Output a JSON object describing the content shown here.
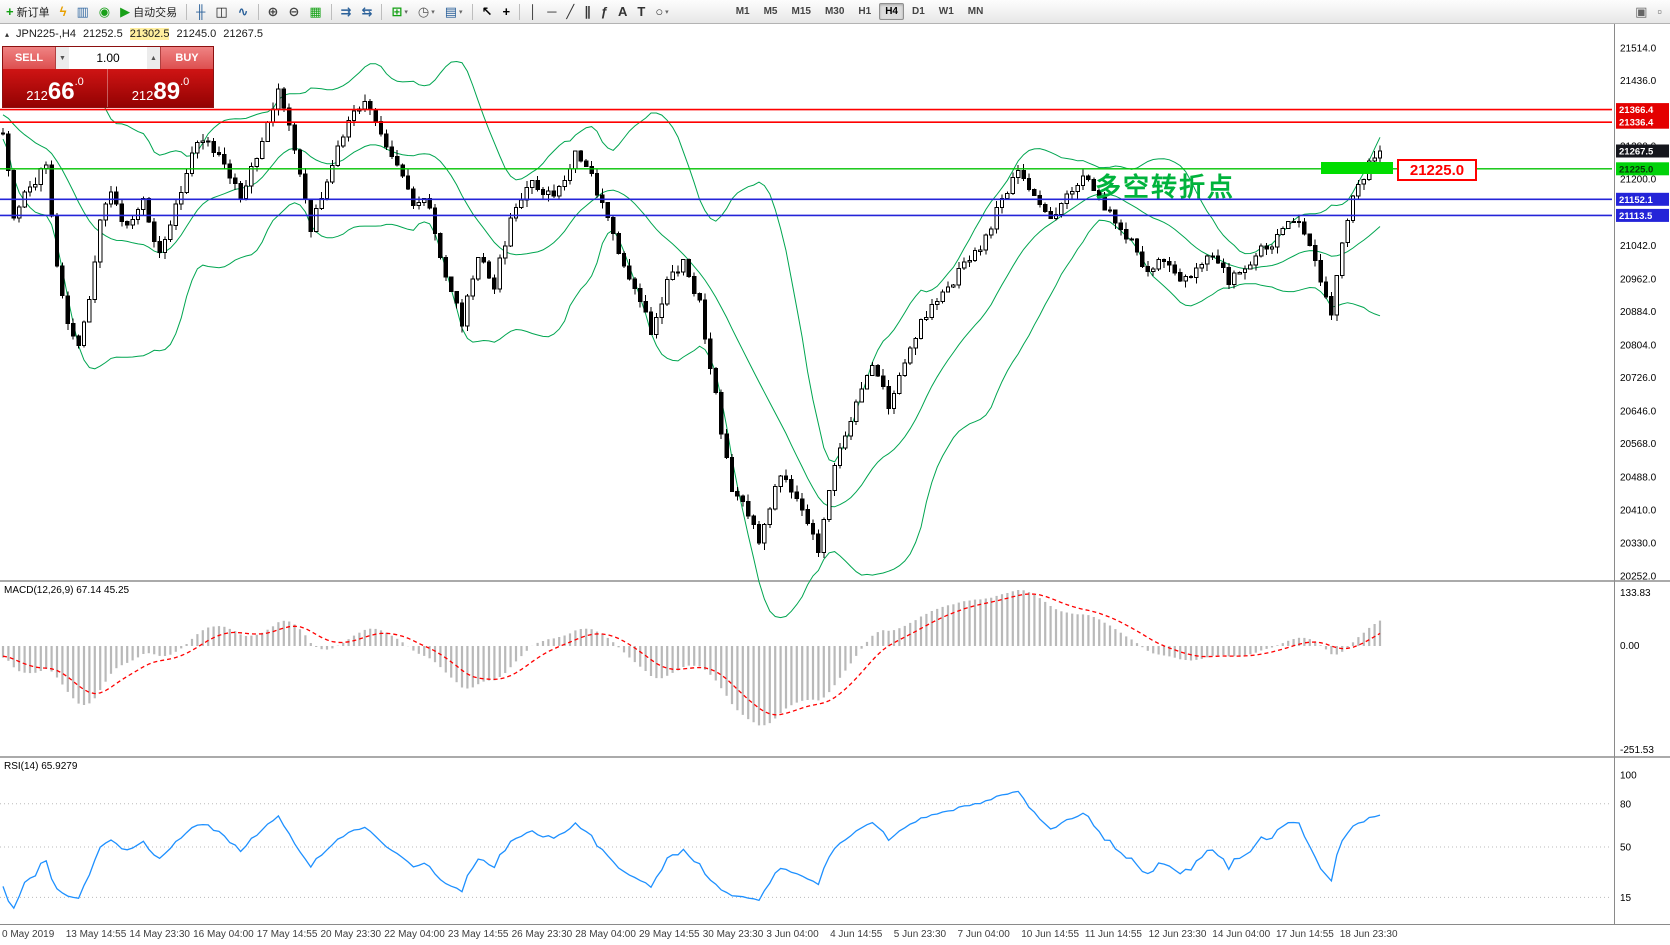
{
  "icons": {
    "up_arrow": "▲",
    "down_arrow": "▼",
    "collapse": "▴",
    "dropdown": "▾"
  },
  "toolbar": {
    "items": [
      {
        "name": "new-order",
        "glyph": "+",
        "color": "#13a113",
        "label": "新订单"
      },
      {
        "name": "lightning",
        "glyph": "ϟ",
        "color": "#e8a000"
      },
      {
        "name": "market-watch",
        "glyph": "▥",
        "color": "#3a6ea5"
      },
      {
        "name": "navigator",
        "glyph": "◉",
        "color": "#18a018"
      },
      {
        "name": "autotrade",
        "glyph": "▶",
        "color": "#18a018",
        "label": "自动交易"
      },
      {
        "sep": true
      },
      {
        "name": "bar-chart",
        "glyph": "╫",
        "color": "#2a6099"
      },
      {
        "name": "candlestick-chart",
        "glyph": "◫",
        "color": "#222222"
      },
      {
        "name": "line-chart",
        "glyph": "∿",
        "color": "#2a6099"
      },
      {
        "sep": true
      },
      {
        "name": "zoom-in",
        "glyph": "⊕",
        "color": "#444444"
      },
      {
        "name": "zoom-out",
        "glyph": "⊖",
        "color": "#444444"
      },
      {
        "name": "tile-windows",
        "glyph": "▦",
        "color": "#13a113"
      },
      {
        "sep": true
      },
      {
        "name": "auto-scroll",
        "glyph": "⇉",
        "color": "#2a6099"
      },
      {
        "name": "chart-shift",
        "glyph": "⇆",
        "color": "#2a6099"
      },
      {
        "sep": true
      },
      {
        "name": "indicators",
        "glyph": "⊞",
        "color": "#13a113",
        "dd": true
      },
      {
        "name": "periods",
        "glyph": "◷",
        "color": "#555555",
        "dd": true
      },
      {
        "name": "templates",
        "glyph": "▤",
        "color": "#2a6099",
        "dd": true
      },
      {
        "sep": true
      },
      {
        "name": "cursor",
        "glyph": "↖",
        "color": "#000000"
      },
      {
        "name": "crosshair",
        "glyph": "+",
        "color": "#000000"
      },
      {
        "sep": true
      },
      {
        "name": "vertical-line",
        "glyph": "│",
        "color": "#333333"
      },
      {
        "name": "horizontal-line",
        "glyph": "─",
        "color": "#333333"
      },
      {
        "name": "trendline",
        "glyph": "╱",
        "color": "#333333"
      },
      {
        "name": "equidistant-channel",
        "glyph": "∥",
        "color": "#333333"
      },
      {
        "name": "fibonacci",
        "glyph": "ƒ",
        "color": "#333333"
      },
      {
        "name": "text",
        "glyph": "A",
        "color": "#333333"
      },
      {
        "name": "text-label",
        "glyph": "T",
        "color": "#333333"
      },
      {
        "name": "shapes",
        "glyph": "○",
        "color": "#333333",
        "dd": true
      }
    ],
    "right_items": [
      {
        "name": "window",
        "glyph": "▣",
        "color": "#666666"
      },
      {
        "name": "docking",
        "glyph": "▫",
        "color": "#666666"
      }
    ],
    "timeframes": [
      {
        "label": "M1"
      },
      {
        "label": "M5"
      },
      {
        "label": "M15"
      },
      {
        "label": "M30"
      },
      {
        "label": "H1"
      },
      {
        "label": "H4",
        "active": true
      },
      {
        "label": "D1"
      },
      {
        "label": "W1"
      },
      {
        "label": "MN"
      }
    ]
  },
  "symbol_header": {
    "symbol": "JPN225-,H4",
    "o": "21252.5",
    "h": "21302.5",
    "l": "21245.0",
    "c": "21267.5"
  },
  "trade_panel": {
    "sell_label": "SELL",
    "buy_label": "BUY",
    "volume": "1.00",
    "sell_price": "21266.0",
    "buy_price": "21289.0"
  },
  "chart_data": {
    "type": "candlestick",
    "symbol": "JPN225-",
    "timeframe": "H4",
    "current_price": 21267.5,
    "y_axis_ticks": [
      "21514.0",
      "21436.0",
      "21358.0",
      "21280.0",
      "21200.0",
      "21120.0",
      "21042.0",
      "20962.0",
      "20884.0",
      "20804.0",
      "20726.0",
      "20646.0",
      "20568.0",
      "20488.0",
      "20410.0",
      "20330.0",
      "20252.0"
    ],
    "price_tags": [
      {
        "value": "21366.4",
        "price": 21366.4,
        "bg": "#e40000",
        "fg": "#ffffff",
        "line": "#ff0000",
        "lw": 1.6
      },
      {
        "value": "21336.4",
        "price": 21336.4,
        "bg": "#e40000",
        "fg": "#ffffff",
        "line": "#ff0000",
        "lw": 1.6
      },
      {
        "value": "21267.5",
        "price": 21267.5,
        "bg": "#15161d",
        "fg": "#ffffff",
        "line": null,
        "lw": 0
      },
      {
        "value": "21225.0",
        "price": 21225.0,
        "bg": "#00d20a",
        "fg": "#083308",
        "line": "#00c300",
        "lw": 1.4
      },
      {
        "value": "21152.1",
        "price": 21152.1,
        "bg": "#2424d8",
        "fg": "#ffffff",
        "line": "#2424d8",
        "lw": 1.6
      },
      {
        "value": "21113.5",
        "price": 21113.5,
        "bg": "#2424d8",
        "fg": "#ffffff",
        "line": "#2424d8",
        "lw": 1.6
      }
    ],
    "marker": {
      "label": "21225.0",
      "rect_color": "#00dd00"
    },
    "annotation": {
      "text": "多空转折点",
      "color": "#00b33c"
    },
    "bollinger": {
      "period": 20,
      "deviation": 2,
      "color": "#00a550"
    },
    "candle_colors": {
      "bull": "#ffffff",
      "bear": "#000000",
      "outline": "#000000"
    },
    "macd": {
      "label": "MACD(12,26,9) 67.14 45.25",
      "axis_labels": [
        "133.83",
        "0.00",
        "-251.53"
      ],
      "hist_color": "#b9b9b9",
      "signal_color": "#ff0000"
    },
    "rsi": {
      "label": "RSI(14) 65.9279",
      "axis_labels": [
        "100",
        "80",
        "50",
        "15"
      ],
      "levels": [
        80,
        50,
        15
      ],
      "color": "#1e90ff"
    },
    "x_labels": [
      "0 May 2019",
      "13 May 14:55",
      "14 May 23:30",
      "16 May 04:00",
      "17 May 14:55",
      "20 May 23:30",
      "22 May 04:00",
      "23 May 14:55",
      "26 May 23:30",
      "28 May 04:00",
      "29 May 14:55",
      "30 May 23:30",
      "3 Jun 04:00",
      "4 Jun 14:55",
      "5 Jun 23:30",
      "7 Jun 04:00",
      "10 Jun 14:55",
      "11 Jun 14:55",
      "12 Jun 23:30",
      "14 Jun 04:00",
      "17 Jun 14:55",
      "18 Jun 23:30"
    ],
    "price_path": [
      [
        -30,
        21430
      ],
      [
        -20,
        21400
      ],
      [
        -10,
        21360
      ],
      [
        -4,
        21330
      ],
      [
        0,
        21320
      ],
      [
        2,
        21120
      ],
      [
        5,
        21180
      ],
      [
        8,
        21230
      ],
      [
        10,
        21000
      ],
      [
        12,
        20850
      ],
      [
        14,
        20800
      ],
      [
        16,
        20900
      ],
      [
        18,
        21100
      ],
      [
        20,
        21170
      ],
      [
        23,
        21080
      ],
      [
        26,
        21150
      ],
      [
        29,
        21020
      ],
      [
        32,
        21140
      ],
      [
        36,
        21300
      ],
      [
        40,
        21260
      ],
      [
        44,
        21150
      ],
      [
        48,
        21300
      ],
      [
        51,
        21420
      ],
      [
        53,
        21330
      ],
      [
        55,
        21200
      ],
      [
        57,
        21080
      ],
      [
        60,
        21200
      ],
      [
        64,
        21340
      ],
      [
        67,
        21380
      ],
      [
        70,
        21310
      ],
      [
        73,
        21240
      ],
      [
        76,
        21150
      ],
      [
        79,
        21140
      ],
      [
        82,
        20960
      ],
      [
        85,
        20860
      ],
      [
        88,
        21010
      ],
      [
        91,
        20950
      ],
      [
        94,
        21100
      ],
      [
        98,
        21190
      ],
      [
        102,
        21150
      ],
      [
        106,
        21260
      ],
      [
        109,
        21210
      ],
      [
        112,
        21100
      ],
      [
        115,
        20990
      ],
      [
        118,
        20900
      ],
      [
        120,
        20840
      ],
      [
        123,
        20950
      ],
      [
        126,
        21010
      ],
      [
        129,
        20900
      ],
      [
        131,
        20760
      ],
      [
        133,
        20600
      ],
      [
        135,
        20460
      ],
      [
        138,
        20400
      ],
      [
        140,
        20340
      ],
      [
        142,
        20420
      ],
      [
        144,
        20490
      ],
      [
        146,
        20450
      ],
      [
        148,
        20420
      ],
      [
        151,
        20300
      ],
      [
        153,
        20450
      ],
      [
        155,
        20560
      ],
      [
        158,
        20660
      ],
      [
        161,
        20760
      ],
      [
        164,
        20660
      ],
      [
        167,
        20760
      ],
      [
        170,
        20860
      ],
      [
        173,
        20910
      ],
      [
        176,
        20960
      ],
      [
        179,
        21010
      ],
      [
        182,
        21060
      ],
      [
        185,
        21160
      ],
      [
        188,
        21210
      ],
      [
        191,
        21150
      ],
      [
        194,
        21100
      ],
      [
        197,
        21160
      ],
      [
        200,
        21210
      ],
      [
        203,
        21160
      ],
      [
        206,
        21100
      ],
      [
        209,
        21050
      ],
      [
        212,
        20980
      ],
      [
        215,
        21010
      ],
      [
        218,
        20950
      ],
      [
        221,
        20980
      ],
      [
        224,
        21030
      ],
      [
        227,
        20950
      ],
      [
        230,
        20990
      ],
      [
        233,
        21030
      ],
      [
        236,
        21060
      ],
      [
        239,
        21110
      ],
      [
        242,
        21050
      ],
      [
        244,
        20950
      ],
      [
        246,
        20880
      ],
      [
        248,
        21060
      ],
      [
        250,
        21160
      ],
      [
        252,
        21210
      ],
      [
        253,
        21240
      ],
      [
        254,
        21260
      ],
      [
        255,
        21270
      ]
    ]
  }
}
